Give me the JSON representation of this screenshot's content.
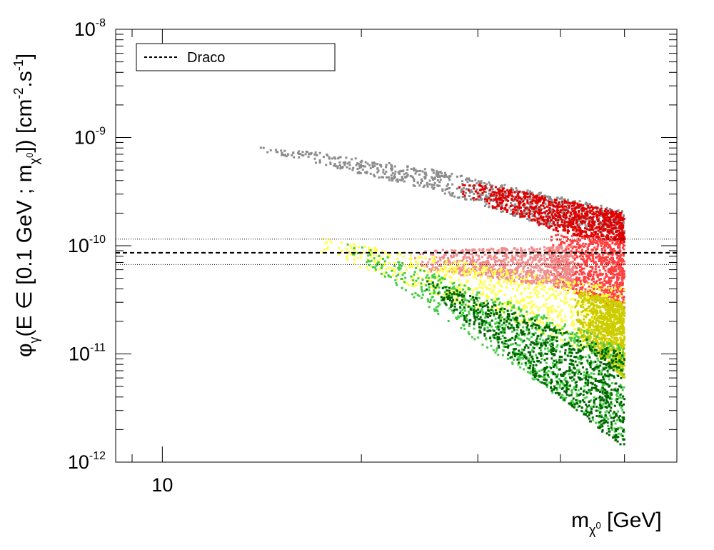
{
  "chart_data": {
    "type": "scatter",
    "title": "",
    "xlabel": "m_χ₁⁰ [GeV]",
    "ylabel": "φ_γ(E ∈ [0.1 GeV ; m_χ₁⁰]) [cm⁻².s⁻¹]",
    "x_scale": "log",
    "y_scale": "log",
    "xlim": [
      8.5,
      60
    ],
    "ylim": [
      1e-12,
      1e-08
    ],
    "x_tick_labels": [
      {
        "value": 10,
        "label": "10"
      }
    ],
    "y_tick_labels": [
      {
        "value": 1e-08,
        "base": "10",
        "exp": "-8"
      },
      {
        "value": 1e-09,
        "base": "10",
        "exp": "-9"
      },
      {
        "value": 1e-10,
        "base": "10",
        "exp": "-10"
      },
      {
        "value": 1e-11,
        "base": "10",
        "exp": "-11"
      },
      {
        "value": 1e-12,
        "base": "10",
        "exp": "-12"
      }
    ],
    "reference_lines": [
      {
        "name": "Draco",
        "value": 8.6e-11,
        "style": "dashed"
      },
      {
        "name": "Draco upper",
        "value": 1.15e-10,
        "style": "dotted"
      },
      {
        "name": "Draco lower",
        "value": 6.7e-11,
        "style": "dotted"
      }
    ],
    "legend": {
      "position": "top-left",
      "entries": [
        {
          "label": "Draco",
          "style": "dashed"
        }
      ]
    },
    "series": [
      {
        "name": "grey (excluded, above band)",
        "color": "#8c8c8c",
        "x_range": [
          13.5,
          50
        ],
        "envelope_top": [
          [
            13.5,
            9e-10
          ],
          [
            26,
            5e-10
          ],
          [
            50,
            2.1e-10
          ]
        ],
        "envelope_bottom": [
          [
            13.5,
            8e-10
          ],
          [
            26,
            3.2e-10
          ],
          [
            37,
            1.6e-10
          ],
          [
            50,
            1.25e-10
          ]
        ]
      },
      {
        "name": "red",
        "color": "#e00000",
        "x_range": [
          28,
          50
        ],
        "envelope_top": [
          [
            28,
            4.2e-10
          ],
          [
            50,
            2e-10
          ]
        ],
        "envelope_bottom": [
          [
            28,
            3e-10
          ],
          [
            40,
            1.3e-10
          ],
          [
            50,
            1.05e-10
          ]
        ]
      },
      {
        "name": "light red",
        "color": "#ff4040",
        "x_range": [
          38,
          50
        ],
        "envelope_top": [
          [
            38,
            1.3e-10
          ],
          [
            50,
            1.1e-10
          ]
        ],
        "envelope_bottom": [
          [
            38,
            4.5e-11
          ],
          [
            50,
            2.5e-11
          ]
        ]
      },
      {
        "name": "pink",
        "color": "#f08c8c",
        "x_range": [
          24,
          42
        ],
        "envelope_top": [
          [
            24,
            9e-11
          ],
          [
            42,
            1e-10
          ]
        ],
        "envelope_bottom": [
          [
            24,
            6e-11
          ],
          [
            42,
            4e-11
          ]
        ]
      },
      {
        "name": "yellow",
        "color": "#ffff40",
        "x_range": [
          17,
          50
        ],
        "envelope_top": [
          [
            17,
            1.2e-10
          ],
          [
            50,
            4e-11
          ]
        ],
        "envelope_bottom": [
          [
            17,
            9e-11
          ],
          [
            50,
            8e-12
          ]
        ]
      },
      {
        "name": "olive",
        "color": "#cccc00",
        "x_range": [
          42,
          50
        ],
        "envelope_top": [
          [
            42,
            4e-11
          ],
          [
            50,
            3e-11
          ]
        ],
        "envelope_bottom": [
          [
            42,
            1.5e-11
          ],
          [
            50,
            6e-12
          ]
        ]
      },
      {
        "name": "light green",
        "color": "#44cc44",
        "x_range": [
          19,
          50
        ],
        "envelope_top": [
          [
            19,
            1.1e-10
          ],
          [
            50,
            1.2e-11
          ]
        ],
        "envelope_bottom": [
          [
            19,
            9e-11
          ],
          [
            50,
            1.5e-12
          ]
        ]
      },
      {
        "name": "dark green",
        "color": "#006600",
        "x_range": [
          25,
          50
        ],
        "envelope_top": [
          [
            25,
            5e-11
          ],
          [
            50,
            1e-11
          ]
        ],
        "envelope_bottom": [
          [
            25,
            4e-11
          ],
          [
            50,
            1.3e-12
          ]
        ]
      }
    ]
  }
}
